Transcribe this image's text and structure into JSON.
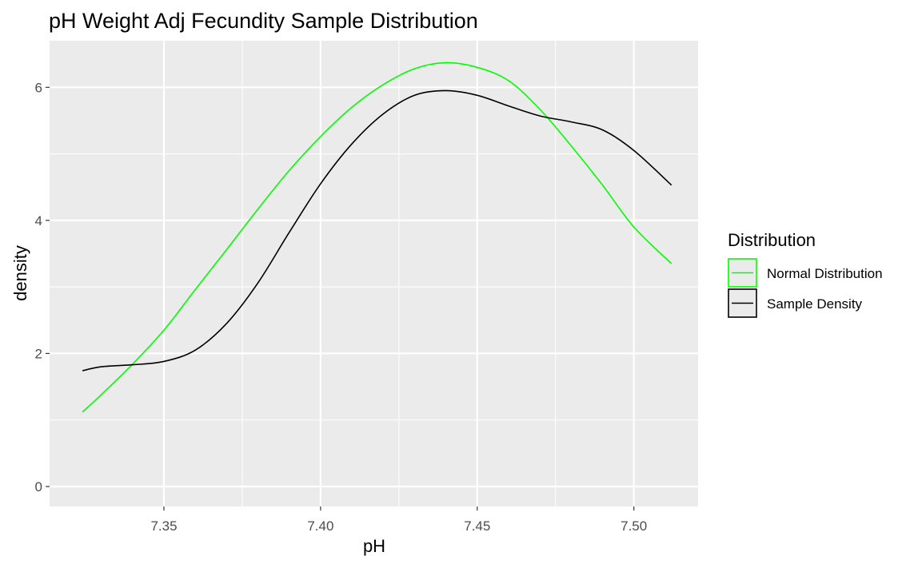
{
  "chart_data": {
    "type": "line",
    "title": "pH Weight Adj Fecundity Sample Distribution",
    "xlabel": "pH",
    "ylabel": "density",
    "xlim": [
      7.3135,
      7.5205
    ],
    "ylim": [
      -0.3,
      6.7
    ],
    "x_ticks": [
      7.35,
      7.4,
      7.45,
      7.5
    ],
    "x_tick_labels": [
      "7.35",
      "7.40",
      "7.45",
      "7.50"
    ],
    "y_ticks": [
      0,
      2,
      4,
      6
    ],
    "y_tick_labels": [
      "0",
      "2",
      "4",
      "6"
    ],
    "grid": true,
    "legend_position": "right",
    "legend_title": "Distribution",
    "panel_background": "#ebebeb",
    "series": [
      {
        "name": "Normal Distribution",
        "color": "#00ff00",
        "x": [
          7.324,
          7.33,
          7.34,
          7.35,
          7.36,
          7.37,
          7.38,
          7.39,
          7.4,
          7.41,
          7.42,
          7.43,
          7.44,
          7.45,
          7.46,
          7.47,
          7.48,
          7.49,
          7.5,
          7.512
        ],
        "y": [
          1.12,
          1.38,
          1.84,
          2.35,
          2.96,
          3.56,
          4.17,
          4.75,
          5.26,
          5.7,
          6.04,
          6.28,
          6.37,
          6.3,
          6.1,
          5.67,
          5.12,
          4.53,
          3.9,
          3.35
        ]
      },
      {
        "name": "Sample Density",
        "color": "#000000",
        "x": [
          7.324,
          7.33,
          7.34,
          7.35,
          7.36,
          7.37,
          7.38,
          7.39,
          7.4,
          7.41,
          7.42,
          7.43,
          7.44,
          7.45,
          7.46,
          7.47,
          7.48,
          7.49,
          7.5,
          7.512
        ],
        "y": [
          1.74,
          1.8,
          1.83,
          1.88,
          2.05,
          2.45,
          3.06,
          3.82,
          4.55,
          5.15,
          5.6,
          5.88,
          5.95,
          5.88,
          5.72,
          5.57,
          5.48,
          5.36,
          5.05,
          4.53
        ]
      }
    ]
  }
}
